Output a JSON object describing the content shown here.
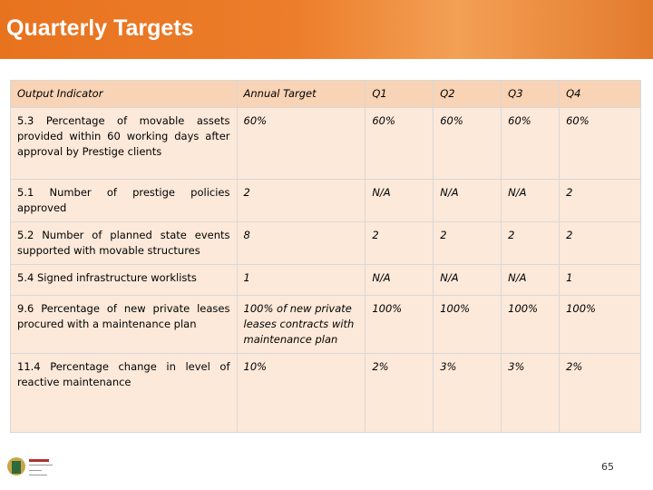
{
  "header": {
    "title": "Quarterly Targets"
  },
  "table": {
    "columns": [
      "Output Indicator",
      "Annual Target",
      "Q1",
      "Q2",
      "Q3",
      "Q4"
    ],
    "rows": [
      [
        "5.3 Percentage of movable assets provided within 60 working days after approval by Prestige clients",
        "60%",
        "60%",
        "60%",
        "60%",
        "60%"
      ],
      [
        "5.1 Number of prestige policies approved",
        "2",
        "N/A",
        "N/A",
        "N/A",
        "2"
      ],
      [
        "5.2 Number of planned state events supported with movable structures",
        "8",
        "2",
        "2",
        "2",
        "2"
      ],
      [
        "5.4 Signed infrastructure worklists",
        "1",
        "N/A",
        "N/A",
        "N/A",
        "1"
      ],
      [
        "9.6 Percentage of new private leases procured with a maintenance plan",
        "100% of new private leases contracts with maintenance plan",
        "100%",
        "100%",
        "100%",
        "100%"
      ],
      [
        "11.4 Percentage change in level of reactive maintenance",
        "10%",
        "2%",
        "3%",
        "3%",
        "2%"
      ]
    ]
  },
  "footer": {
    "page_number": "65"
  }
}
